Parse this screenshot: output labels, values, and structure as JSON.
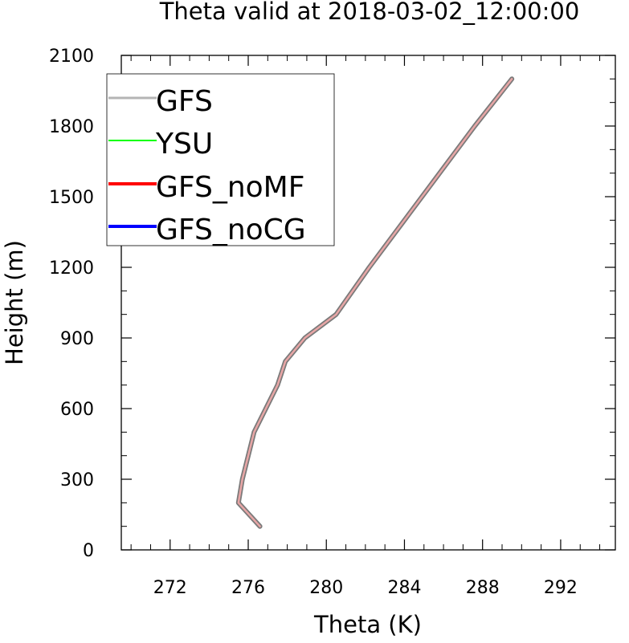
{
  "chart_data": {
    "type": "line",
    "title": "Theta valid at 2018-03-02_12:00:00",
    "xlabel": "Theta (K)",
    "ylabel": "Height (m)",
    "xlim": [
      269.5,
      294.8
    ],
    "ylim": [
      0,
      2100
    ],
    "xticks": [
      272,
      276,
      280,
      284,
      288,
      292
    ],
    "xtick_labels": [
      "272",
      "276",
      "280",
      "284",
      "288",
      "292"
    ],
    "yticks": [
      0,
      300,
      600,
      900,
      1200,
      1500,
      1800,
      2100
    ],
    "ytick_labels": [
      "0",
      "300",
      "600",
      "900",
      "1200",
      "1500",
      "1800",
      "2100"
    ],
    "x_minor_step": 1,
    "y_minor_step": 100,
    "legend_position": "top-left",
    "series": [
      {
        "name": "GFS",
        "color": "#b4b4b4",
        "x": [
          276.6,
          275.5,
          275.7,
          276.3,
          276.9,
          277.5,
          277.9,
          278.9,
          280.5,
          282.2,
          284.0,
          285.8,
          287.6,
          289.5
        ],
        "y": [
          100,
          200,
          300,
          500,
          600,
          700,
          800,
          900,
          1000,
          1200,
          1400,
          1600,
          1800,
          2000
        ]
      },
      {
        "name": "YSU",
        "color": "#00ff00",
        "x": [
          276.6,
          275.5,
          275.7,
          276.3,
          276.9,
          277.5,
          277.9,
          278.9,
          280.5,
          282.2,
          284.0,
          285.8,
          287.6,
          289.5
        ],
        "y": [
          100,
          200,
          300,
          500,
          600,
          700,
          800,
          900,
          1000,
          1200,
          1400,
          1600,
          1800,
          2000
        ]
      },
      {
        "name": "GFS_noMF",
        "color": "#ff0000",
        "x": [
          276.6,
          275.5,
          275.7,
          276.3,
          276.9,
          277.5,
          277.9,
          278.9,
          280.5,
          282.2,
          284.0,
          285.8,
          287.6,
          289.5
        ],
        "y": [
          100,
          200,
          300,
          500,
          600,
          700,
          800,
          900,
          1000,
          1200,
          1400,
          1600,
          1800,
          2000
        ]
      },
      {
        "name": "GFS_noCG",
        "color": "#0000ff",
        "x": [
          276.6,
          275.5,
          275.7,
          276.3,
          276.9,
          277.5,
          277.9,
          278.9,
          280.5,
          282.2,
          284.0,
          285.8,
          287.6,
          289.5
        ],
        "y": [
          100,
          200,
          300,
          500,
          600,
          700,
          800,
          900,
          1000,
          1200,
          1400,
          1600,
          1800,
          2000
        ]
      }
    ],
    "drawn_curve": {
      "outline_color": "#7a7a7a",
      "fill_color": "#e8a6a6"
    }
  }
}
